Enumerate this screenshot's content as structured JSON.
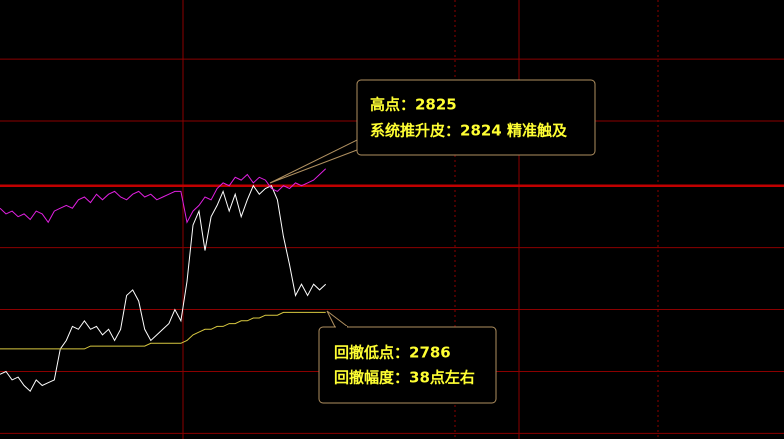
{
  "chart_data": {
    "type": "line",
    "xlim": [
      0,
      130
    ],
    "ylim": [
      2735,
      2891
    ],
    "yticks": [
      2737,
      2759,
      2781,
      2803,
      2825,
      2848,
      2870
    ],
    "grid": true,
    "grid_color": "#8b0000",
    "reference_line": 2825,
    "reference_color": "#c00000",
    "series": [
      {
        "color": "#ffffff",
        "values": [
          2758,
          2759,
          2756,
          2757,
          2754,
          2752,
          2756,
          2754,
          2755,
          2756,
          2767,
          2770,
          2775,
          2774,
          2777,
          2774,
          2775,
          2772,
          2774,
          2770,
          2774,
          2786,
          2788,
          2784,
          2774,
          2770,
          2772,
          2774,
          2776,
          2781,
          2777,
          2791,
          2811,
          2816,
          2802,
          2814,
          2818,
          2823,
          2816,
          2822,
          2814,
          2820,
          2825,
          2822,
          2824,
          2825,
          2820,
          2807,
          2797,
          2786,
          2790,
          2786,
          2790,
          2788,
          2790
        ]
      },
      {
        "color": "#e020e0",
        "values": [
          2817,
          2815,
          2816,
          2814,
          2815,
          2813,
          2816,
          2815,
          2812,
          2816,
          2817,
          2818,
          2817,
          2820,
          2821,
          2819,
          2822,
          2820,
          2822,
          2823,
          2821,
          2820,
          2822,
          2823,
          2821,
          2822,
          2820,
          2821,
          2822,
          2823,
          2823,
          2812,
          2816,
          2818,
          2821,
          2820,
          2824,
          2826,
          2825,
          2828,
          2827,
          2829,
          2826,
          2828,
          2827,
          2824,
          2823,
          2825,
          2824,
          2826,
          2825,
          2826,
          2827,
          2829,
          2831
        ]
      },
      {
        "color": "#d8c840",
        "values": [
          2767,
          2767,
          2767,
          2767,
          2767,
          2767,
          2767,
          2767,
          2767,
          2767,
          2767,
          2767,
          2767,
          2767,
          2767,
          2768,
          2768,
          2768,
          2768,
          2768,
          2768,
          2768,
          2768,
          2768,
          2768,
          2769,
          2769,
          2769,
          2769,
          2769,
          2769,
          2770,
          2772,
          2773,
          2774,
          2774,
          2775,
          2775,
          2776,
          2776,
          2777,
          2777,
          2778,
          2778,
          2779,
          2779,
          2779,
          2780,
          2780,
          2780,
          2780,
          2780,
          2780,
          2780,
          2780
        ]
      }
    ],
    "annotations": [
      {
        "lines": [
          "高点：2825",
          "系统推升皮：2824  精准触及"
        ]
      },
      {
        "lines": [
          "回撤低点：2786",
          "回撤幅度：38点左右"
        ]
      }
    ]
  }
}
